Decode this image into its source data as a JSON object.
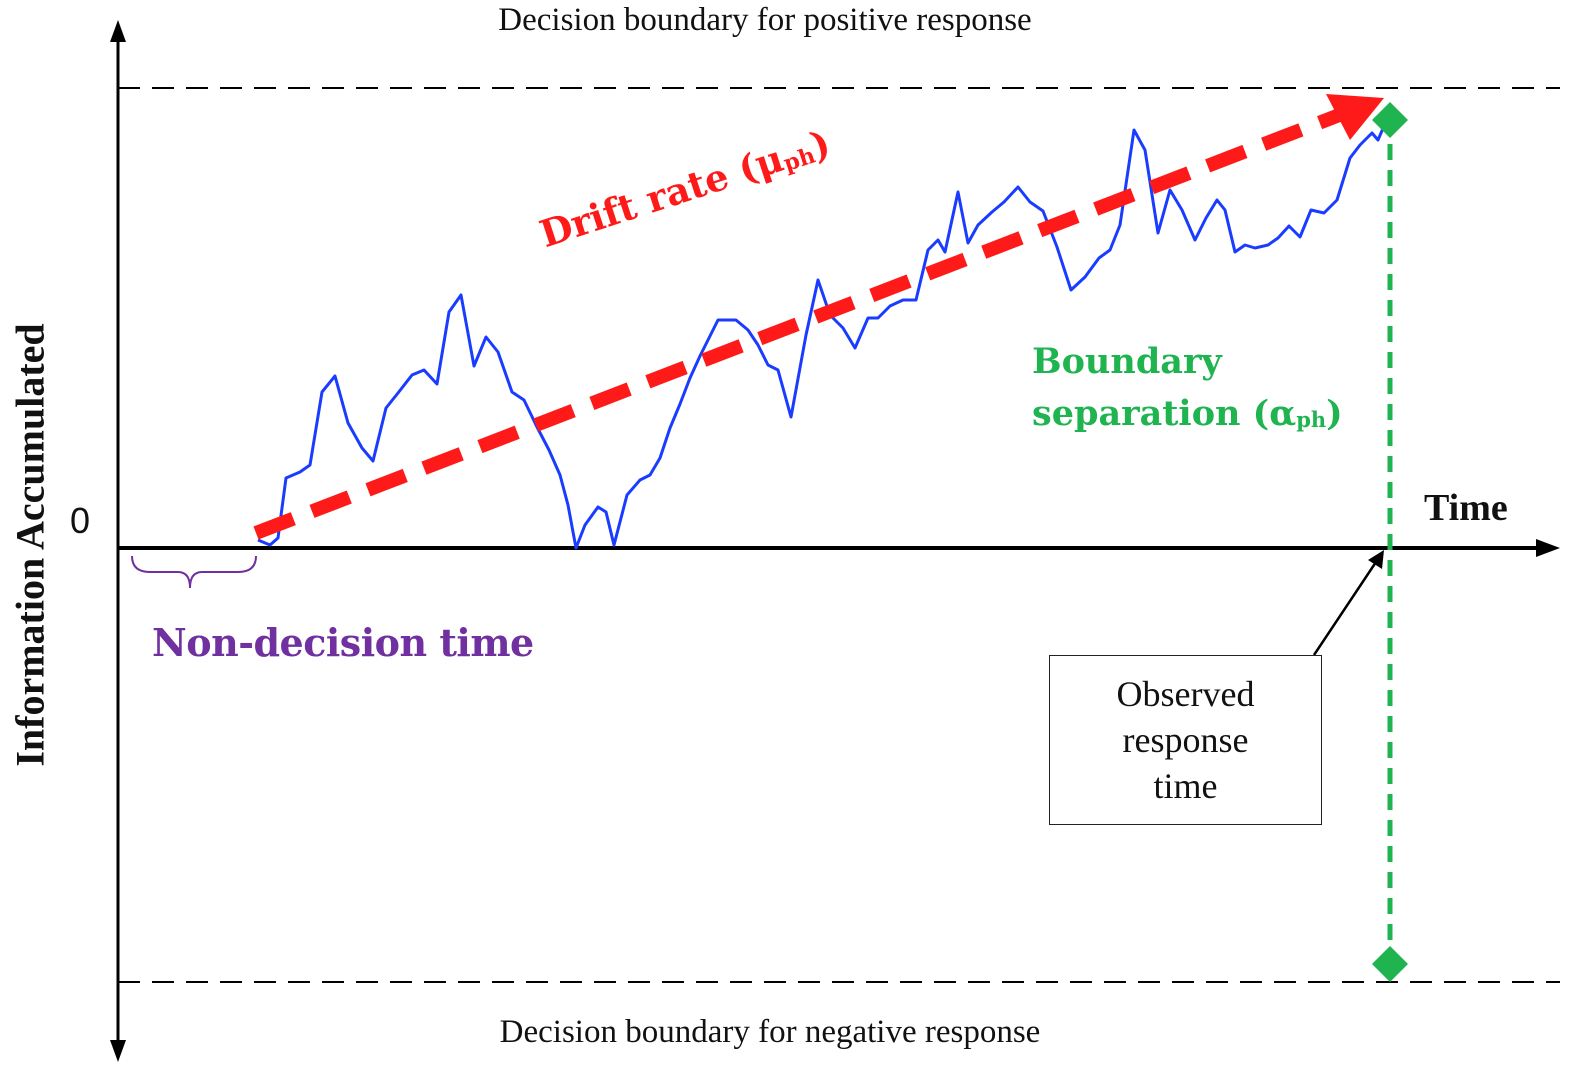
{
  "diagram": {
    "top_boundary_label": "Decision boundary for positive response",
    "bottom_boundary_label": "Decision boundary for negative response",
    "zero_label": "0",
    "x_axis_label": "Time",
    "y_axis_label": "Information Accumulated",
    "non_decision_time_label": "Non-decision time",
    "drift_rate_label": "Drift rate (μ",
    "drift_rate_sub": "ph",
    "drift_rate_close": ")",
    "boundary_sep_line1": "Boundary",
    "boundary_sep_line2": "separation (α",
    "boundary_sep_sub": "ph",
    "boundary_sep_close": ")",
    "response_time_label": "Observed\nresponse\ntime"
  },
  "colors": {
    "random_walk": "#1a3cff",
    "drift_arrow": "#ff1a1a",
    "boundary_separation": "#1fb450",
    "non_decision_time": "#7030a0",
    "axis": "#000000"
  }
}
